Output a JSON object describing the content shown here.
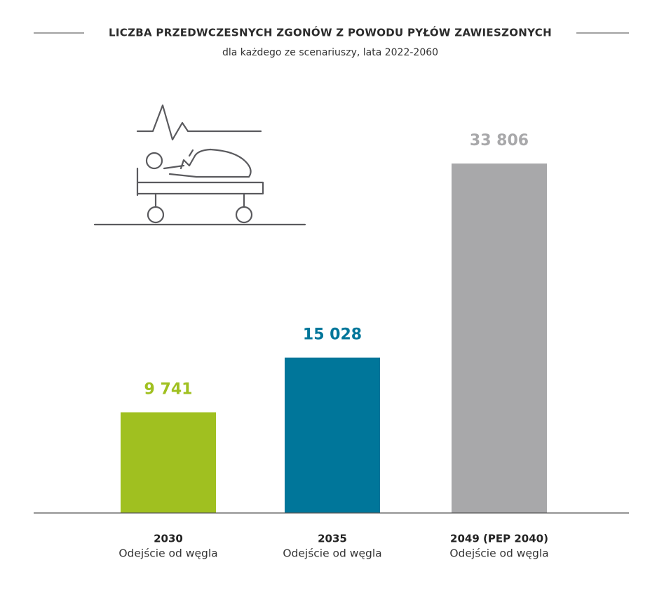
{
  "chart_data": {
    "type": "bar",
    "title": "LICZBA PRZEDWCZESNYCH ZGONÓW Z POWODU PYŁÓW ZAWIESZONYCH",
    "subtitle": "dla każdego ze scenariuszy, lata 2022-2060",
    "categories": [
      "2030",
      "2035",
      "2049 (PEP 2040)"
    ],
    "category_sublabels": [
      "Odejście od węgla",
      "Odejście od węgla",
      "Odejście od węgla"
    ],
    "values": [
      9741,
      15028,
      33806
    ],
    "value_labels": [
      "9 741",
      "15 028",
      "33 806"
    ],
    "colors": [
      "#a0c020",
      "#00769a",
      "#a8a8aa"
    ]
  }
}
